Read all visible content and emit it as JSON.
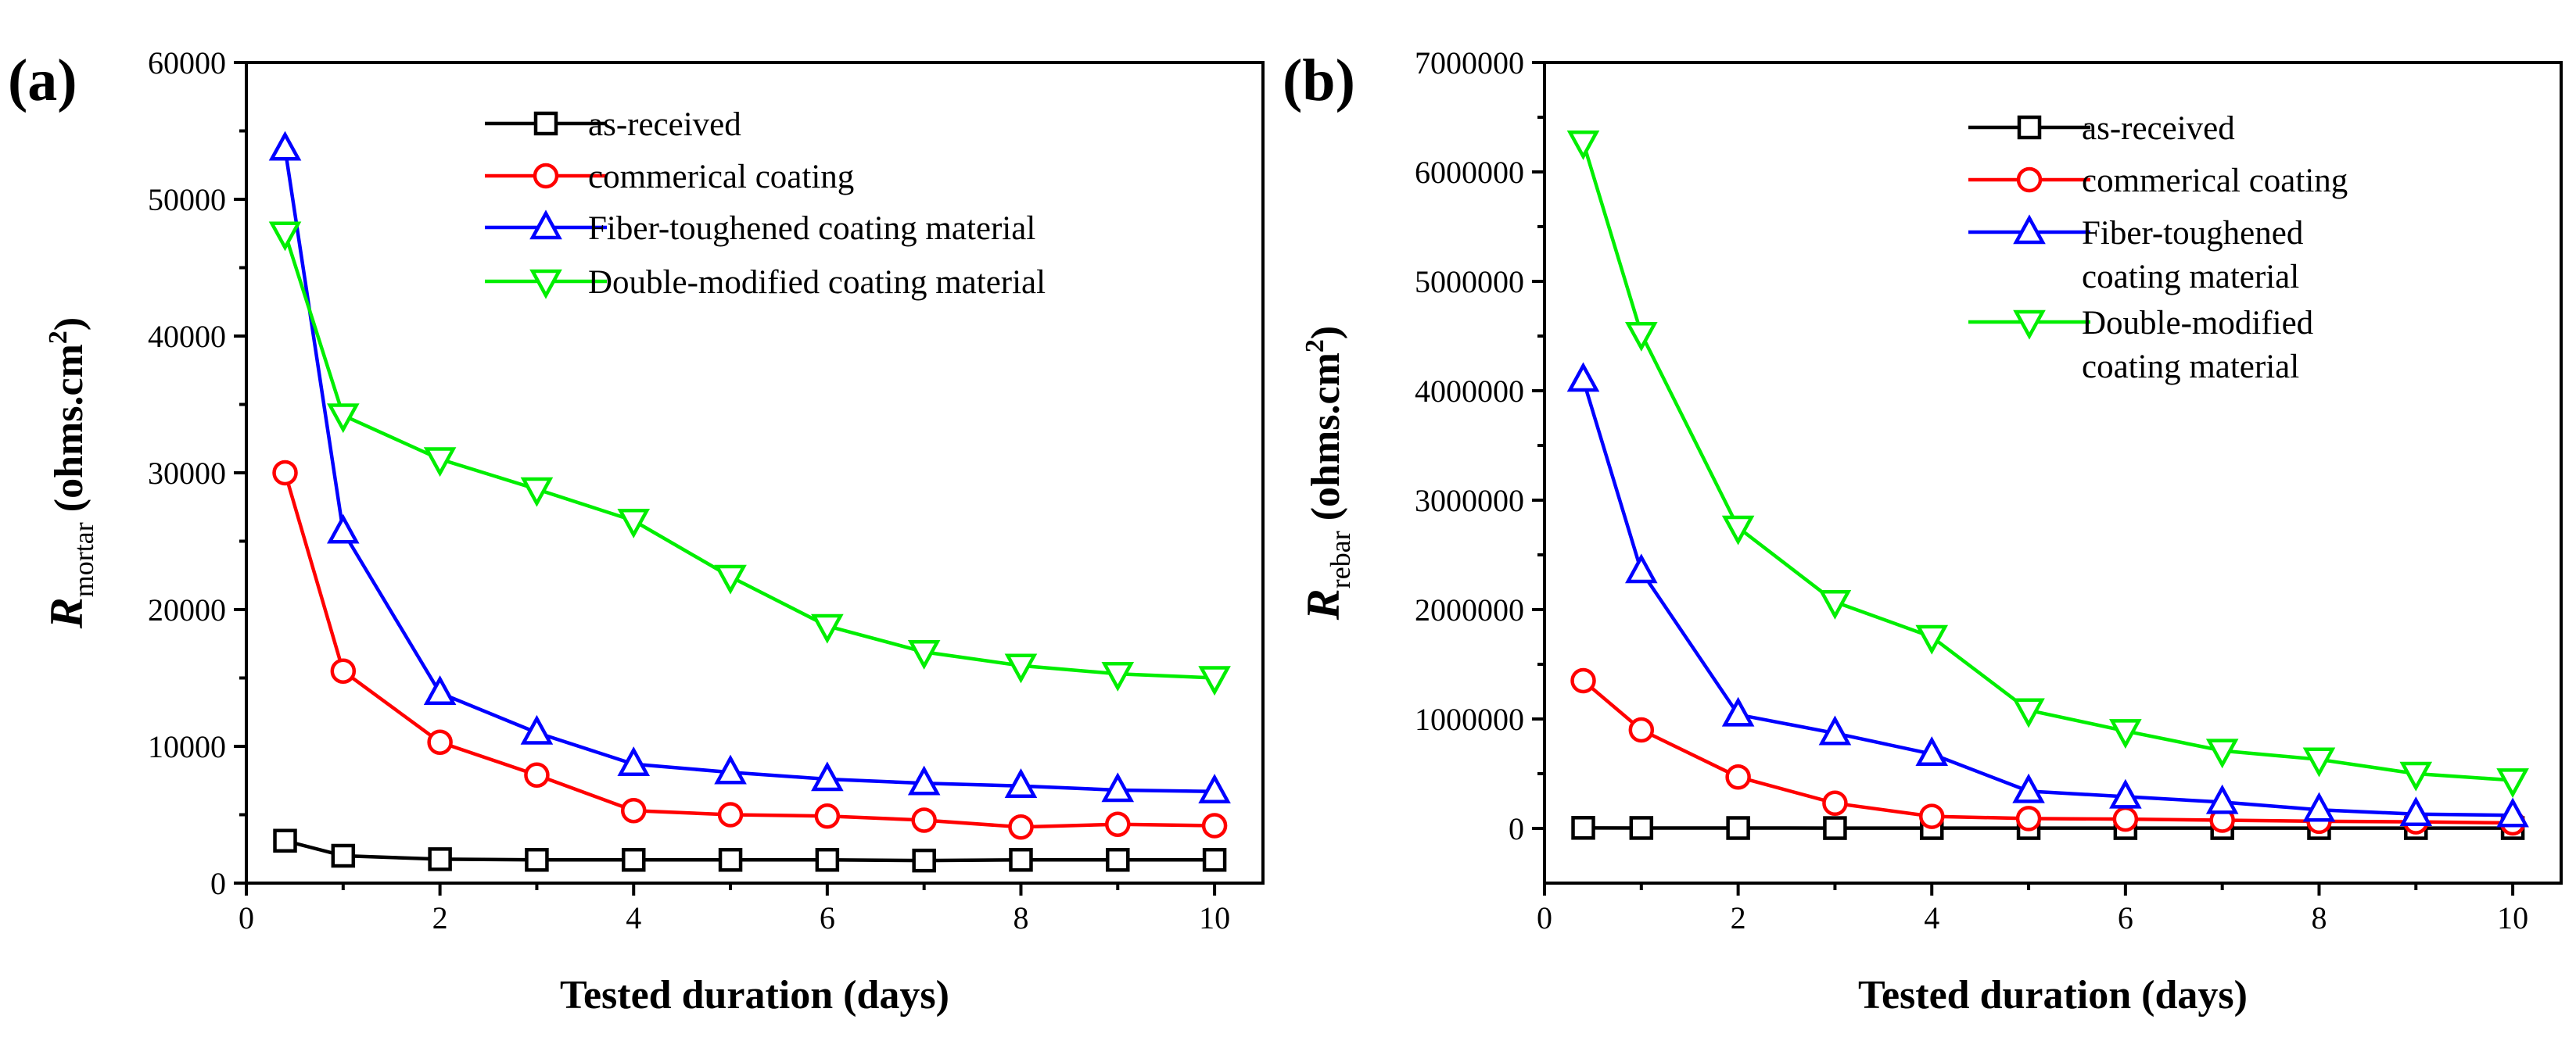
{
  "colors": {
    "as_received": "#000000",
    "commercial": "#ff0000",
    "fiber": "#0000ff",
    "double": "#00ee00"
  },
  "chart_data": [
    {
      "type": "line",
      "panel_label": "(a)",
      "title": "",
      "xlabel": "Tested duration (days)",
      "ylabel": {
        "main": "R",
        "sub": "mortar",
        "unit_pre": " (ohms.cm",
        "unit_sup": "2",
        "unit_post": ")"
      },
      "xlim": [
        0,
        10.5
      ],
      "ylim": [
        0,
        60000
      ],
      "xticks": [
        0,
        2,
        4,
        6,
        8,
        10
      ],
      "xtick_labels": [
        "0",
        "2",
        "4",
        "6",
        "8",
        "10"
      ],
      "yticks": [
        0,
        10000,
        20000,
        30000,
        40000,
        50000,
        60000
      ],
      "ytick_labels": [
        "0",
        "10000",
        "20000",
        "30000",
        "40000",
        "50000",
        "60000"
      ],
      "x": [
        0.4,
        1,
        2,
        3,
        4,
        5,
        6,
        7,
        8,
        9,
        10
      ],
      "legend_position": "top-right",
      "series": [
        {
          "name": "as-received",
          "name_lines": [
            "as-received"
          ],
          "marker": "square",
          "color_key": "as_received",
          "values": [
            3100,
            2000,
            1750,
            1700,
            1700,
            1700,
            1700,
            1650,
            1700,
            1700,
            1700
          ]
        },
        {
          "name": "commerical coating",
          "name_lines": [
            "commerical coating"
          ],
          "marker": "circle",
          "color_key": "commercial",
          "values": [
            30000,
            15500,
            10300,
            7900,
            5300,
            5000,
            4900,
            4600,
            4100,
            4300,
            4200
          ]
        },
        {
          "name": "Fiber-toughened coating material",
          "name_lines": [
            "Fiber-toughened coating material"
          ],
          "marker": "triangle-up",
          "color_key": "fiber",
          "values": [
            53700,
            25700,
            13900,
            11000,
            8700,
            8100,
            7600,
            7300,
            7100,
            6800,
            6700
          ]
        },
        {
          "name": "Double-modified coating material",
          "name_lines": [
            "Double-modified coating material"
          ],
          "marker": "triangle-down",
          "color_key": "double",
          "values": [
            47500,
            34200,
            31000,
            28800,
            26500,
            22400,
            18800,
            16900,
            15900,
            15300,
            15000
          ]
        }
      ]
    },
    {
      "type": "line",
      "panel_label": "(b)",
      "title": "",
      "xlabel": "Tested duration (days)",
      "ylabel": {
        "main": "R",
        "sub": "rebar",
        "unit_pre": " (ohms.cm",
        "unit_sup": "2",
        "unit_post": ")"
      },
      "xlim": [
        0,
        10.5
      ],
      "ylim": [
        -500000,
        7000000
      ],
      "xticks": [
        0,
        2,
        4,
        6,
        8,
        10
      ],
      "xtick_labels": [
        "0",
        "2",
        "4",
        "6",
        "8",
        "10"
      ],
      "yticks": [
        0,
        1000000,
        2000000,
        3000000,
        4000000,
        5000000,
        6000000,
        7000000
      ],
      "ytick_labels": [
        "0",
        "1000000",
        "2000000",
        "3000000",
        "4000000",
        "5000000",
        "6000000",
        "7000000"
      ],
      "x": [
        0.4,
        1,
        2,
        3,
        4,
        5,
        6,
        7,
        8,
        9,
        10
      ],
      "legend_position": "top-right",
      "series": [
        {
          "name": "as-received",
          "name_lines": [
            "as-received"
          ],
          "marker": "square",
          "color_key": "as_received",
          "values": [
            5000,
            4000,
            3500,
            3000,
            3000,
            3000,
            3000,
            3000,
            3000,
            3000,
            3000
          ]
        },
        {
          "name": "commerical coating",
          "name_lines": [
            "commerical coating"
          ],
          "marker": "circle",
          "color_key": "commercial",
          "values": [
            1350000,
            900000,
            470000,
            230000,
            110000,
            90000,
            85000,
            75000,
            65000,
            60000,
            50000
          ]
        },
        {
          "name": "Fiber-toughened coating material",
          "name_lines": [
            "Fiber-toughened",
            "coating material"
          ],
          "marker": "triangle-up",
          "color_key": "fiber",
          "values": [
            4100000,
            2350000,
            1040000,
            870000,
            680000,
            340000,
            290000,
            240000,
            170000,
            130000,
            120000
          ]
        },
        {
          "name": "Double-modified coating material",
          "name_lines": [
            "Double-modified",
            "coating material"
          ],
          "marker": "triangle-down",
          "color_key": "double",
          "values": [
            6270000,
            4520000,
            2750000,
            2070000,
            1750000,
            1080000,
            890000,
            710000,
            630000,
            500000,
            440000
          ]
        }
      ]
    }
  ]
}
